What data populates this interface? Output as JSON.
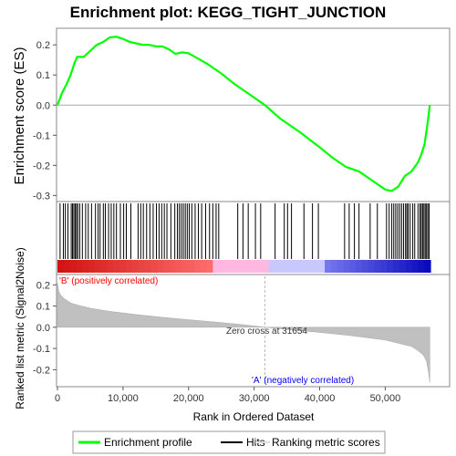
{
  "chart_data": {
    "type": "line",
    "title": "Enrichment plot: KEGG_TIGHT_JUNCTION",
    "xlabel": "Rank in Ordered Dataset",
    "x_ticks": [
      0,
      10000,
      20000,
      30000,
      40000,
      50000
    ],
    "x_tick_labels": [
      "0",
      "10,000",
      "20,000",
      "30,000",
      "40,000",
      "50,000"
    ],
    "xlim": [
      0,
      56900
    ],
    "top_panel": {
      "ylabel": "Enrichment score (ES)",
      "ylim": [
        -0.32,
        0.255
      ],
      "y_ticks": [
        -0.3,
        -0.2,
        -0.1,
        0.0,
        0.1,
        0.2
      ],
      "y_tick_labels": [
        "-0.3",
        "-0.2",
        "-0.1",
        "0.0",
        "0.1",
        "0.2"
      ],
      "series": [
        {
          "name": "Enrichment profile",
          "color": "#00ff00",
          "x": [
            0,
            700,
            1400,
            2000,
            2600,
            3000,
            4000,
            5000,
            6000,
            7000,
            8000,
            9000,
            10000,
            11000,
            12000,
            13000,
            14000,
            15000,
            16000,
            17000,
            18000,
            19000,
            20000,
            21000,
            22000,
            23000,
            24000,
            25000,
            27000,
            29000,
            31654,
            34000,
            37000,
            40000,
            42000,
            44000,
            46000,
            48000,
            50000,
            51000,
            52000,
            53000,
            54000,
            55000,
            55500,
            56000,
            56400,
            56800
          ],
          "y": [
            0.0,
            0.04,
            0.07,
            0.1,
            0.14,
            0.16,
            0.16,
            0.18,
            0.2,
            0.21,
            0.225,
            0.227,
            0.22,
            0.21,
            0.205,
            0.2,
            0.2,
            0.195,
            0.195,
            0.185,
            0.17,
            0.175,
            0.172,
            0.16,
            0.148,
            0.135,
            0.12,
            0.105,
            0.07,
            0.04,
            0.0,
            -0.045,
            -0.09,
            -0.14,
            -0.175,
            -0.205,
            -0.22,
            -0.25,
            -0.28,
            -0.285,
            -0.27,
            -0.235,
            -0.22,
            -0.19,
            -0.165,
            -0.13,
            -0.07,
            0.0
          ]
        }
      ]
    },
    "hits": {
      "name": "Hits",
      "color": "#000000",
      "positions": [
        400,
        900,
        1200,
        1600,
        2100,
        2300,
        2500,
        2700,
        2900,
        3100,
        3400,
        3800,
        4300,
        4700,
        5200,
        5800,
        6200,
        6500,
        7000,
        7300,
        7800,
        8200,
        8600,
        9000,
        9600,
        10100,
        10500,
        11200,
        12300,
        12700,
        13100,
        13600,
        14100,
        14600,
        15100,
        15500,
        15900,
        16300,
        16700,
        17300,
        17900,
        18300,
        18600,
        18900,
        19200,
        19500,
        19800,
        20100,
        20500,
        21000,
        21500,
        22000,
        22600,
        23200,
        23700,
        24200,
        24600,
        27500,
        28300,
        29100,
        30200,
        31000,
        33200,
        34600,
        35100,
        35700,
        37600,
        38900,
        39800,
        43800,
        44500,
        45300,
        46000,
        47700,
        48800,
        50200,
        50600,
        51000,
        51300,
        51600,
        51900,
        52200,
        52500,
        52800,
        53100,
        53300,
        53500,
        53800,
        54200,
        54500,
        55000,
        55300,
        55500,
        55700,
        55900,
        56100,
        56300,
        56500,
        56700
      ]
    },
    "ranking_metric": {
      "name": "Ranking metric scores",
      "ylabel": "Ranked list metric (Signal2Noise)",
      "ylim": [
        -0.28,
        0.24
      ],
      "y_ticks": [
        -0.2,
        -0.1,
        0.0,
        0.1,
        0.2
      ],
      "y_tick_labels": [
        "-0.2",
        "-0.1",
        "0.0",
        "0.1",
        "0.2"
      ],
      "x": [
        0,
        200,
        500,
        1000,
        2000,
        3000,
        5000,
        8000,
        12000,
        16000,
        20000,
        24000,
        28000,
        31654,
        35000,
        40000,
        45000,
        50000,
        52000,
        54000,
        55000,
        55800,
        56300,
        56600,
        56800
      ],
      "y": [
        0.21,
        0.17,
        0.15,
        0.135,
        0.115,
        0.105,
        0.09,
        0.075,
        0.06,
        0.047,
        0.036,
        0.025,
        0.013,
        0.0,
        -0.01,
        -0.024,
        -0.04,
        -0.06,
        -0.075,
        -0.09,
        -0.11,
        -0.13,
        -0.16,
        -0.21,
        -0.26
      ]
    },
    "zero_cross_label": "Zero cross at 31654",
    "zero_cross": 31654,
    "pos_label": "'B' (positively correlated)",
    "neg_label": "'A' (negatively correlated)",
    "legend": [
      {
        "name": "Enrichment profile",
        "color": "#00ff00"
      },
      {
        "name": "Hits",
        "color": "#000000"
      },
      {
        "name": "Ranking metric scores",
        "color": "#cccccc"
      }
    ],
    "legend_position": "bottom",
    "grid": false
  },
  "colors": {
    "profile": "#00ff00",
    "hit": "#000000",
    "metric_fill": "#c0c0c0",
    "pos_label": "#ff0000",
    "neg_label": "#0000ff",
    "zero_line": "#c8c8c8"
  }
}
